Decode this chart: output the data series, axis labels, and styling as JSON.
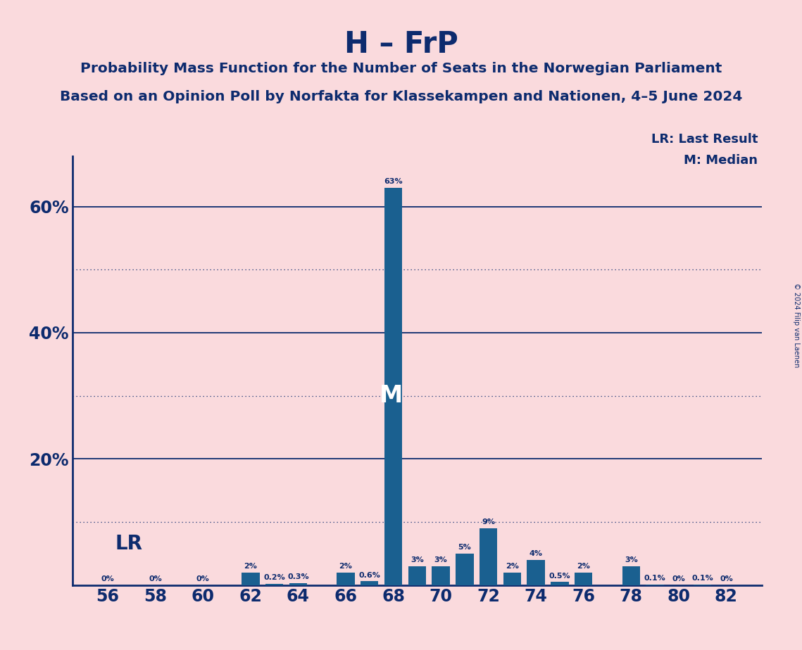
{
  "title": "H – FrP",
  "subtitle1": "Probability Mass Function for the Number of Seats in the Norwegian Parliament",
  "subtitle2": "Based on an Opinion Poll by Norfakta for Klassekampen and Nationen, 4–5 June 2024",
  "copyright": "© 2024 Filip van Laenen",
  "lr_label": "LR: Last Result",
  "m_label": "M: Median",
  "seats": [
    56,
    57,
    58,
    59,
    60,
    61,
    62,
    63,
    64,
    65,
    66,
    67,
    68,
    69,
    70,
    71,
    72,
    73,
    74,
    75,
    76,
    77,
    78,
    79,
    80,
    81,
    82
  ],
  "probabilities": [
    0.0,
    0.0,
    0.0,
    0.0,
    0.0,
    0.0,
    2.0,
    0.2,
    0.3,
    0.0,
    2.0,
    0.6,
    63.0,
    3.0,
    3.0,
    5.0,
    9.0,
    2.0,
    4.0,
    0.5,
    2.0,
    0.0,
    3.0,
    0.1,
    0.0,
    0.1,
    0.0
  ],
  "bar_color": "#1a6090",
  "median_seat": 68,
  "lr_seat": 56,
  "background_color": "#fadadd",
  "text_color": "#0d2b6e",
  "solid_yticks": [
    20,
    40,
    60
  ],
  "dotted_yticks": [
    10,
    30,
    50
  ],
  "xlabel_seats": [
    56,
    58,
    60,
    62,
    64,
    66,
    68,
    70,
    72,
    74,
    76,
    78,
    80,
    82
  ],
  "ylim_max": 68
}
